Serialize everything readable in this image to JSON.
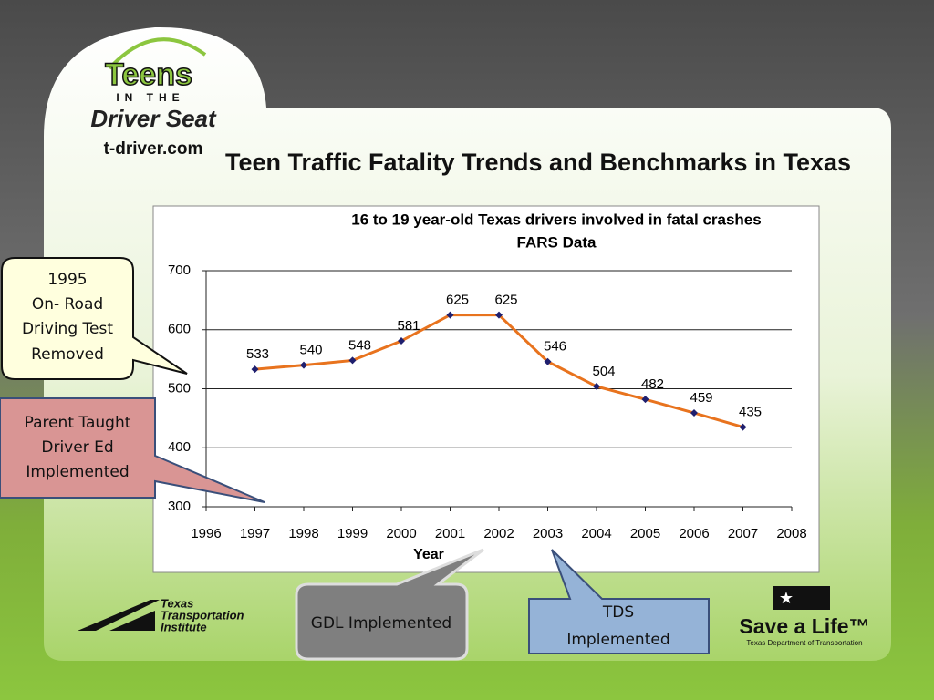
{
  "slide": {
    "title": "Teen Traffic Fatality Trends and Benchmarks in Texas",
    "logo": {
      "lines": [
        "Teens",
        "IN THE",
        "Driver Seat"
      ],
      "url": "t-driver.com"
    },
    "callouts": [
      {
        "lines": [
          "1995",
          "On- Road",
          "Driving Test",
          "Removed"
        ]
      },
      {
        "lines": [
          "Parent Taught",
          "Driver Ed",
          "Implemented"
        ]
      },
      {
        "lines": [
          "GDL Implemented"
        ]
      },
      {
        "lines": [
          "TDS",
          "Implemented"
        ]
      }
    ],
    "footer": {
      "tti": [
        "Texas",
        "Transportation",
        "Institute"
      ],
      "save_a_life": "Save a Life™",
      "txdot": "Texas Department of Transportation"
    }
  },
  "chart_data": {
    "type": "line",
    "title": "16 to 19 year-old Texas drivers involved in fatal crashes",
    "subtitle": "FARS Data",
    "x_label": "Year",
    "x": [
      1997,
      1998,
      1999,
      2000,
      2001,
      2002,
      2003,
      2004,
      2005,
      2006,
      2007
    ],
    "values": [
      533,
      540,
      548,
      581,
      625,
      625,
      546,
      504,
      482,
      459,
      435
    ],
    "color": "#e8731e",
    "marker_color": "#1f1f6e",
    "xlim": [
      1996,
      2008
    ],
    "xticks": [
      1996,
      1997,
      1998,
      1999,
      2000,
      2001,
      2002,
      2003,
      2004,
      2005,
      2006,
      2007,
      2008
    ],
    "ylim": [
      300,
      700
    ],
    "yticks": [
      300,
      400,
      500,
      600,
      700
    ],
    "grid": true
  }
}
